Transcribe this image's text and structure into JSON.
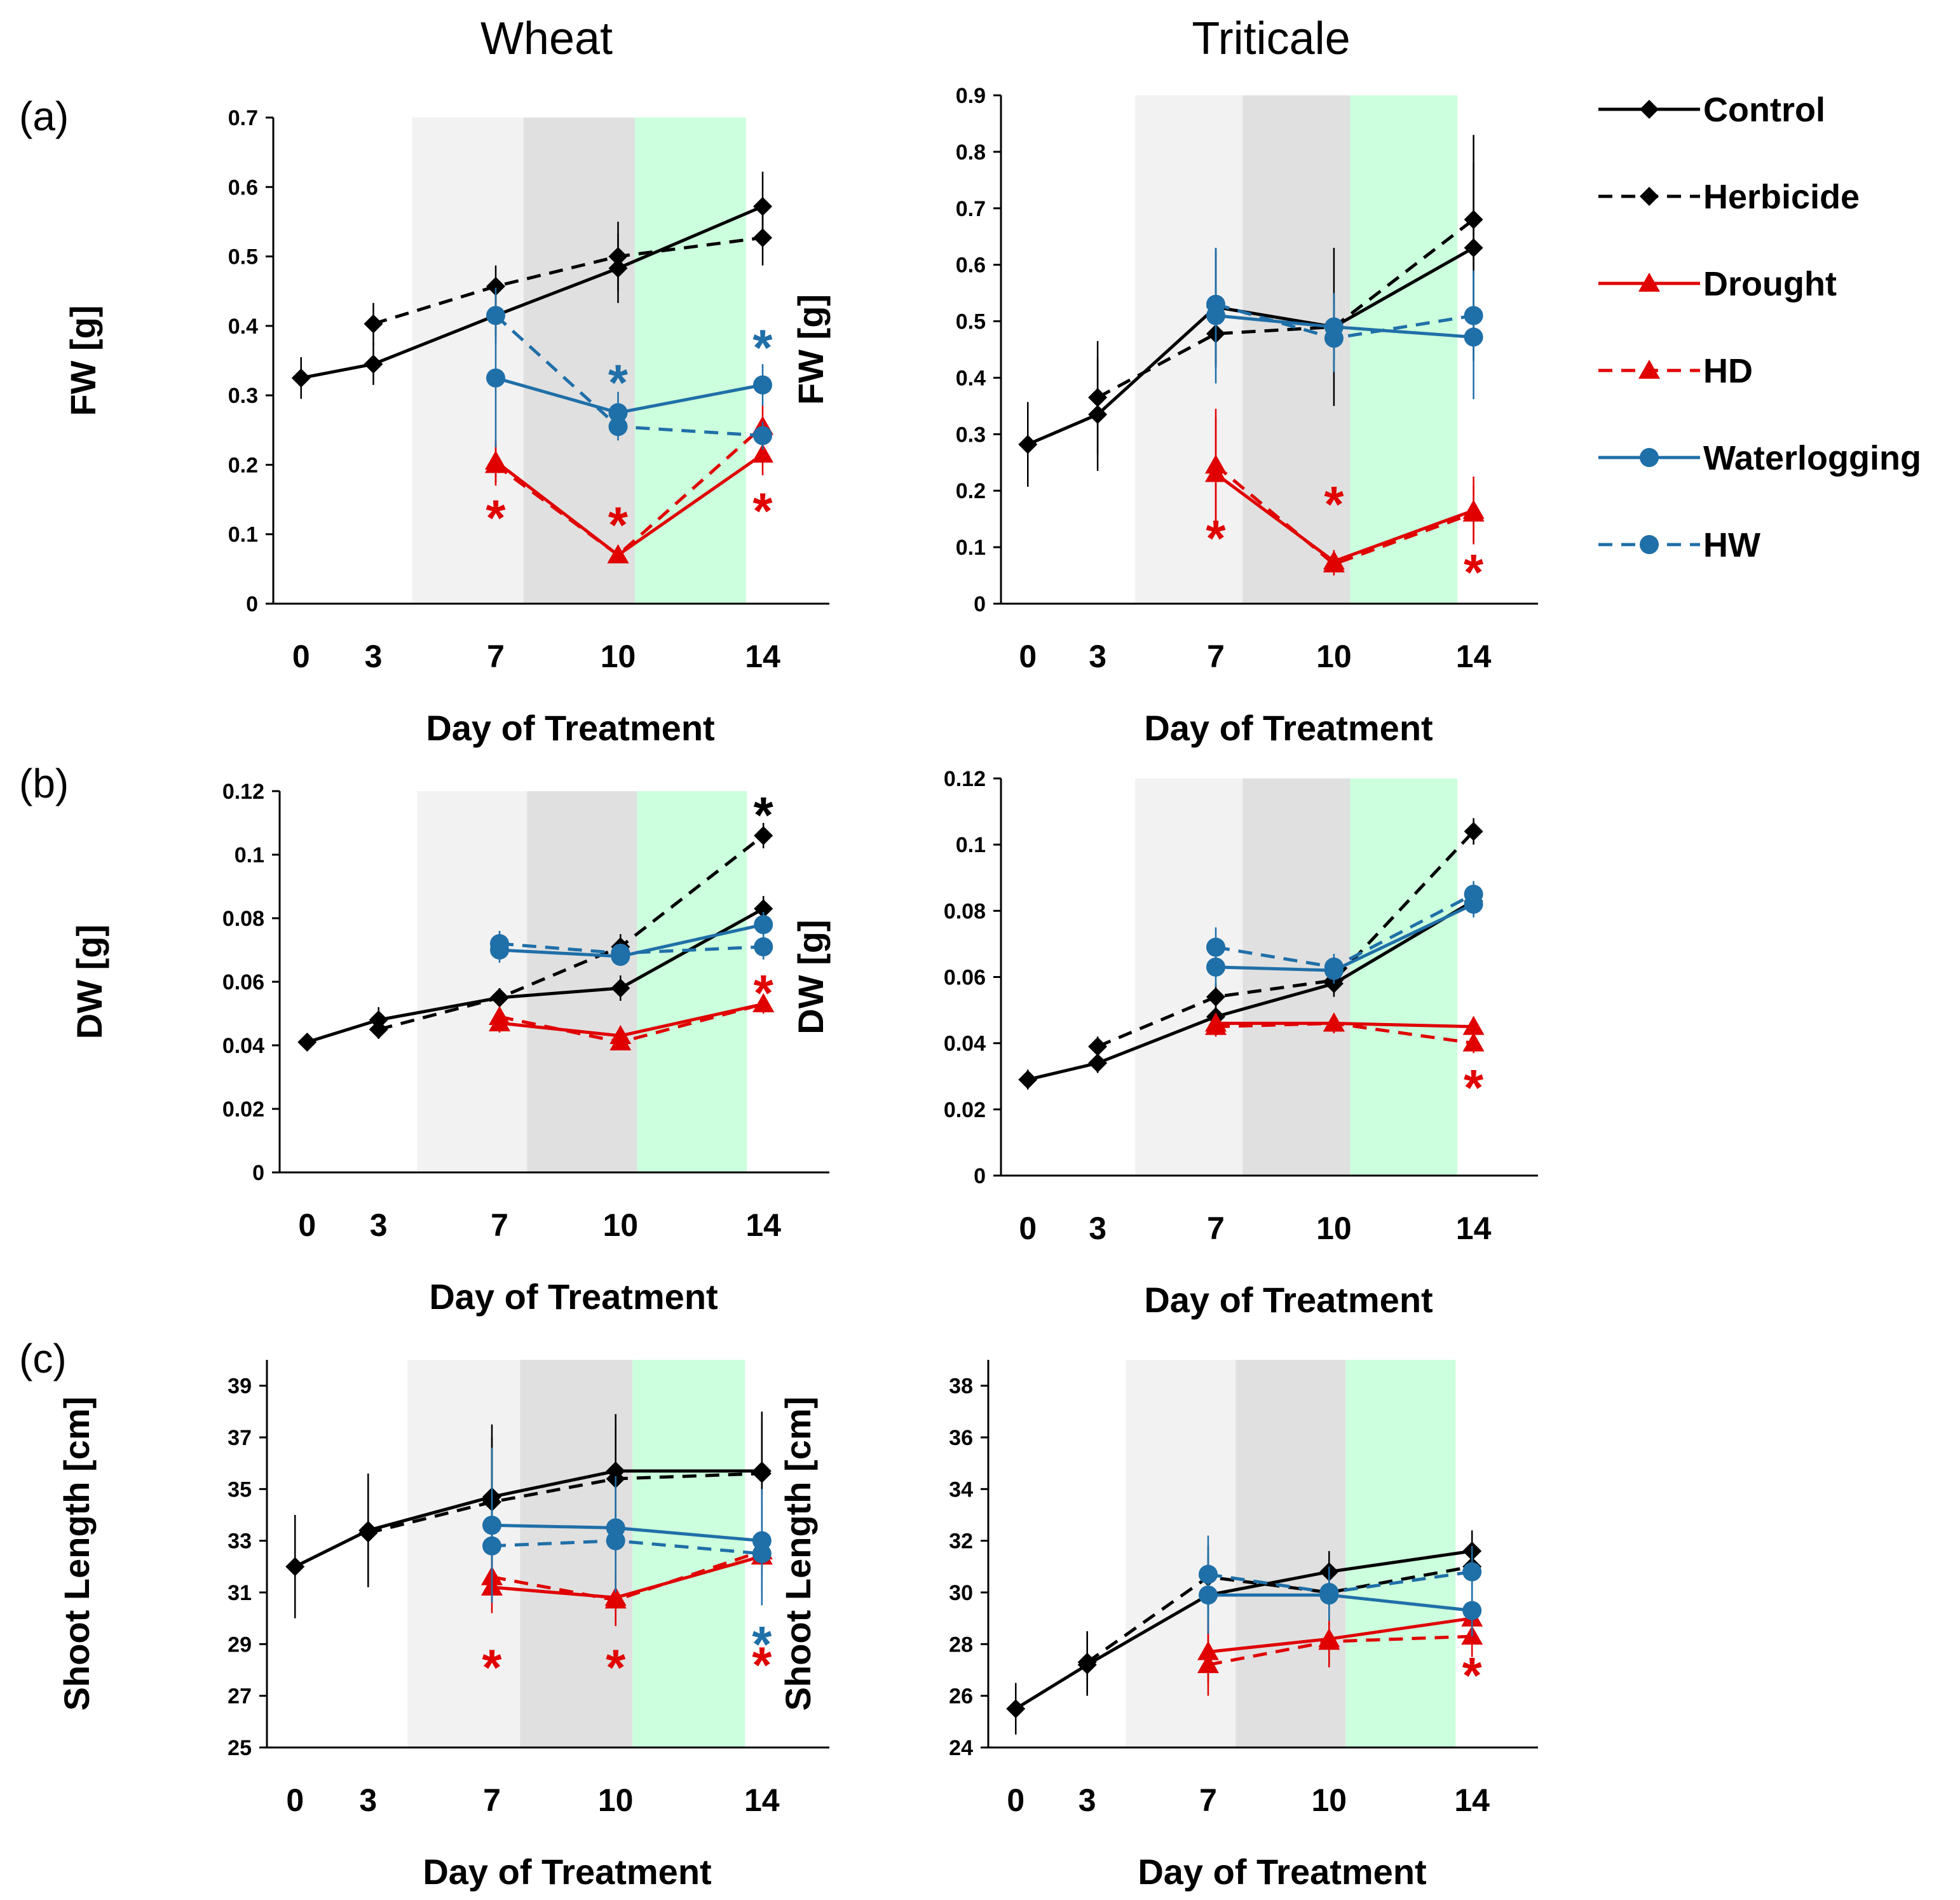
{
  "figure": {
    "column_titles": [
      "Wheat",
      "Triticale"
    ],
    "panel_labels": [
      "(a)",
      "(b)",
      "(c)"
    ],
    "colors": {
      "control": "#000000",
      "herbicide": "#000000",
      "drought": "#e00000",
      "hd": "#e00000",
      "waterlogging": "#1f6fa8",
      "hw": "#1f6fa8",
      "band_light": "#f2f2f2",
      "band_dark": "#e0e0e0",
      "band_green": "#ccffdd"
    }
  },
  "legend": {
    "items": [
      {
        "label": "Control",
        "color": "#000000",
        "dash": false,
        "marker": "diamond"
      },
      {
        "label": "Herbicide",
        "color": "#000000",
        "dash": true,
        "marker": "diamond"
      },
      {
        "label": "Drought",
        "color": "#e00000",
        "dash": false,
        "marker": "triangle"
      },
      {
        "label": "HD",
        "color": "#e00000",
        "dash": true,
        "marker": "triangle"
      },
      {
        "label": "Waterlogging",
        "color": "#1f6fa8",
        "dash": false,
        "marker": "circle"
      },
      {
        "label": "HW",
        "color": "#1f6fa8",
        "dash": true,
        "marker": "circle"
      }
    ]
  },
  "chart_data": [
    {
      "id": "a-wheat",
      "type": "line",
      "panel": "(a)",
      "crop": "Wheat",
      "ylabel": "FW [g]",
      "xlabel": "Day of Treatment",
      "x": [
        0,
        3,
        7,
        10,
        14
      ],
      "x_tick_labels": [
        "0",
        "3",
        "7",
        "10",
        "14"
      ],
      "ylim": [
        0,
        0.7
      ],
      "ystep": 0.1,
      "yticks": [
        "0",
        "0.1",
        "0.2",
        "0.3",
        "0.4",
        "0.5",
        "0.6",
        "0.7"
      ],
      "bands": [
        [
          3,
          7
        ],
        [
          7,
          10
        ],
        [
          10,
          14
        ]
      ],
      "series": [
        {
          "name": "Control",
          "values": [
            0.325,
            0.345,
            0.415,
            0.483,
            0.572
          ],
          "err": [
            0.03,
            0.03,
            0.03,
            0.05,
            0.05
          ]
        },
        {
          "name": "Herbicide",
          "values": [
            null,
            0.403,
            0.457,
            0.5,
            0.527
          ],
          "err": [
            null,
            0.03,
            0.03,
            0.05,
            0.04
          ]
        },
        {
          "name": "Drought",
          "values": [
            null,
            null,
            0.205,
            0.07,
            0.215
          ],
          "err": [
            null,
            null,
            0.03,
            0.01,
            0.03
          ]
        },
        {
          "name": "HD",
          "values": [
            null,
            null,
            0.2,
            0.07,
            0.255
          ],
          "err": [
            null,
            null,
            0.03,
            0.01,
            0.03
          ]
        },
        {
          "name": "Waterlogging",
          "values": [
            null,
            null,
            0.325,
            0.275,
            0.315
          ],
          "err": [
            null,
            null,
            0.1,
            0.03,
            0.03
          ]
        },
        {
          "name": "HW",
          "values": [
            null,
            null,
            0.415,
            0.255,
            0.242
          ],
          "err": [
            null,
            null,
            0.04,
            0.02,
            0.02
          ]
        }
      ],
      "annotations": [
        {
          "text": "*",
          "x": 7,
          "y": 0.135,
          "series": "Drought"
        },
        {
          "text": "*",
          "x": 10,
          "y": 0.125,
          "series": "Drought"
        },
        {
          "text": "*",
          "x": 14,
          "y": 0.145,
          "series": "Drought"
        },
        {
          "text": "*",
          "x": 10,
          "y": 0.33,
          "series": "Waterlogging"
        },
        {
          "text": "*",
          "x": 14,
          "y": 0.38,
          "series": "Waterlogging"
        }
      ]
    },
    {
      "id": "a-triticale",
      "type": "line",
      "panel": "(a)",
      "crop": "Triticale",
      "ylabel": "FW [g]",
      "xlabel": "Day of Treatment",
      "x": [
        0,
        3,
        7,
        10,
        14
      ],
      "x_tick_labels": [
        "0",
        "3",
        "7",
        "10",
        "14"
      ],
      "ylim": [
        0,
        0.9
      ],
      "ystep": 0.1,
      "yticks": [
        "0",
        "0.1",
        "0.2",
        "0.3",
        "0.4",
        "0.5",
        "0.6",
        "0.7",
        "0.8",
        "0.9"
      ],
      "bands": [
        [
          3,
          7
        ],
        [
          7,
          10
        ],
        [
          10,
          14
        ]
      ],
      "series": [
        {
          "name": "Control",
          "values": [
            0.282,
            0.335,
            0.525,
            0.49,
            0.63
          ],
          "err": [
            0.075,
            0.1,
            0.1,
            0.14,
            0.2
          ]
        },
        {
          "name": "Herbicide",
          "values": [
            null,
            0.365,
            0.478,
            0.49,
            0.68
          ],
          "err": [
            null,
            0.1,
            0.06,
            0.06,
            0.1
          ]
        },
        {
          "name": "Drought",
          "values": [
            null,
            null,
            0.23,
            0.075,
            0.165
          ],
          "err": [
            null,
            null,
            0.1,
            0.02,
            0.06
          ]
        },
        {
          "name": "HD",
          "values": [
            null,
            null,
            0.245,
            0.07,
            0.16
          ],
          "err": [
            null,
            null,
            0.1,
            0.02,
            0.05
          ]
        },
        {
          "name": "Waterlogging",
          "values": [
            null,
            null,
            0.51,
            0.49,
            0.472
          ],
          "err": [
            null,
            null,
            0.12,
            0.06,
            0.11
          ]
        },
        {
          "name": "HW",
          "values": [
            null,
            null,
            0.53,
            0.47,
            0.51
          ],
          "err": [
            null,
            null,
            0.1,
            0.06,
            0.08
          ]
        }
      ],
      "annotations": [
        {
          "text": "*",
          "x": 7,
          "y": 0.13,
          "series": "Drought"
        },
        {
          "text": "*",
          "x": 10,
          "y": 0.19,
          "series": "Drought"
        },
        {
          "text": "*",
          "x": 14,
          "y": 0.07,
          "series": "Drought"
        }
      ]
    },
    {
      "id": "b-wheat",
      "type": "line",
      "panel": "(b)",
      "crop": "Wheat",
      "ylabel": "DW  [g]",
      "xlabel": "Day of Treatment",
      "x": [
        0,
        3,
        7,
        10,
        14
      ],
      "x_tick_labels": [
        "0",
        "3",
        "7",
        "10",
        "14"
      ],
      "ylim": [
        0,
        0.12
      ],
      "ystep": 0.02,
      "yticks": [
        "0",
        "0.02",
        "0.04",
        "0.06",
        "0.08",
        "0.1",
        "0.12"
      ],
      "bands": [
        [
          3,
          7
        ],
        [
          7,
          10
        ],
        [
          10,
          14
        ]
      ],
      "series": [
        {
          "name": "Control",
          "values": [
            0.041,
            0.048,
            0.055,
            0.058,
            0.083
          ],
          "err": [
            0.002,
            0.004,
            0.003,
            0.004,
            0.004
          ]
        },
        {
          "name": "Herbicide",
          "values": [
            null,
            0.045,
            0.055,
            0.071,
            0.106
          ],
          "err": [
            null,
            0.003,
            0.003,
            0.004,
            0.004
          ]
        },
        {
          "name": "Drought",
          "values": [
            null,
            null,
            0.047,
            0.043,
            0.053
          ],
          "err": [
            null,
            null,
            0.003,
            0.002,
            0.003
          ]
        },
        {
          "name": "HD",
          "values": [
            null,
            null,
            0.049,
            0.041,
            0.053
          ],
          "err": [
            null,
            null,
            0.003,
            0.002,
            0.003
          ]
        },
        {
          "name": "Waterlogging",
          "values": [
            null,
            null,
            0.07,
            0.068,
            0.078
          ],
          "err": [
            null,
            null,
            0.004,
            0.003,
            0.004
          ]
        },
        {
          "name": "HW",
          "values": [
            null,
            null,
            0.072,
            0.069,
            0.071
          ],
          "err": [
            null,
            null,
            0.004,
            0.003,
            0.004
          ]
        }
      ],
      "annotations": [
        {
          "text": "*",
          "x": 14,
          "y": 0.115,
          "series": "Herbicide"
        },
        {
          "text": "*",
          "x": 14,
          "y": 0.059,
          "series": "Drought"
        }
      ]
    },
    {
      "id": "b-triticale",
      "type": "line",
      "panel": "(b)",
      "crop": "Triticale",
      "ylabel": "DW  [g]",
      "xlabel": "Day of Treatment",
      "x": [
        0,
        3,
        7,
        10,
        14
      ],
      "x_tick_labels": [
        "0",
        "3",
        "7",
        "10",
        "14"
      ],
      "ylim": [
        0,
        0.12
      ],
      "ystep": 0.02,
      "yticks": [
        "0",
        "0.02",
        "0.04",
        "0.06",
        "0.08",
        "0.1",
        "0.12"
      ],
      "bands": [
        [
          3,
          7
        ],
        [
          7,
          10
        ],
        [
          10,
          14
        ]
      ],
      "series": [
        {
          "name": "Control",
          "values": [
            0.029,
            0.034,
            0.048,
            0.058,
            0.083
          ],
          "err": [
            0.003,
            0.003,
            0.004,
            0.004,
            0.004
          ]
        },
        {
          "name": "Herbicide",
          "values": [
            null,
            0.039,
            0.054,
            0.059,
            0.104
          ],
          "err": [
            null,
            0.003,
            0.004,
            0.004,
            0.004
          ]
        },
        {
          "name": "Drought",
          "values": [
            null,
            null,
            0.046,
            0.046,
            0.045
          ],
          "err": [
            null,
            null,
            0.003,
            0.003,
            0.003
          ]
        },
        {
          "name": "HD",
          "values": [
            null,
            null,
            0.045,
            0.046,
            0.04
          ],
          "err": [
            null,
            null,
            0.003,
            0.003,
            0.003
          ]
        },
        {
          "name": "Waterlogging",
          "values": [
            null,
            null,
            0.063,
            0.062,
            0.082
          ],
          "err": [
            null,
            null,
            0.006,
            0.004,
            0.004
          ]
        },
        {
          "name": "HW",
          "values": [
            null,
            null,
            0.069,
            0.063,
            0.085
          ],
          "err": [
            null,
            null,
            0.006,
            0.004,
            0.004
          ]
        }
      ],
      "annotations": [
        {
          "text": "*",
          "x": 14,
          "y": 0.029,
          "series": "HD"
        }
      ]
    },
    {
      "id": "c-wheat",
      "type": "line",
      "panel": "(c)",
      "crop": "Wheat",
      "ylabel": "Shoot Length  [cm]",
      "xlabel": "Day of Treatment",
      "x": [
        0,
        3,
        7,
        10,
        14
      ],
      "x_tick_labels": [
        "0",
        "3",
        "7",
        "10",
        "14"
      ],
      "ylim": [
        25,
        40
      ],
      "ystep": 2,
      "yticks": [
        "25",
        "27",
        "29",
        "31",
        "33",
        "35",
        "37",
        "39"
      ],
      "bands": [
        [
          3,
          7
        ],
        [
          7,
          10
        ],
        [
          10,
          14
        ]
      ],
      "series": [
        {
          "name": "Control",
          "values": [
            32.0,
            33.4,
            34.7,
            35.7,
            35.7
          ],
          "err": [
            2.0,
            2.2,
            2.8,
            2.2,
            2.3
          ]
        },
        {
          "name": "Herbicide",
          "values": [
            null,
            33.3,
            34.5,
            35.4,
            35.6
          ],
          "err": [
            null,
            2.0,
            2.5,
            2.0,
            2.0
          ]
        },
        {
          "name": "Drought",
          "values": [
            null,
            null,
            31.2,
            30.8,
            32.4
          ],
          "err": [
            null,
            null,
            1.0,
            1.0,
            1.0
          ]
        },
        {
          "name": "HD",
          "values": [
            null,
            null,
            31.6,
            30.7,
            32.6
          ],
          "err": [
            null,
            null,
            1.0,
            1.0,
            1.0
          ]
        },
        {
          "name": "Waterlogging",
          "values": [
            null,
            null,
            33.6,
            33.5,
            33.0
          ],
          "err": [
            null,
            null,
            3.0,
            2.0,
            2.0
          ]
        },
        {
          "name": "HW",
          "values": [
            null,
            null,
            32.8,
            33.0,
            32.5
          ],
          "err": [
            null,
            null,
            2.0,
            2.0,
            2.0
          ]
        }
      ],
      "annotations": [
        {
          "text": "*",
          "x": 7,
          "y": 28.4,
          "series": "Drought"
        },
        {
          "text": "*",
          "x": 10,
          "y": 28.4,
          "series": "Drought"
        },
        {
          "text": "*",
          "x": 14,
          "y": 28.5,
          "series": "Drought"
        },
        {
          "text": "*",
          "x": 14,
          "y": 29.3,
          "series": "Waterlogging"
        }
      ]
    },
    {
      "id": "c-triticale",
      "type": "line",
      "panel": "(c)",
      "crop": "Triticale",
      "ylabel": "Shoot Length  [cm]",
      "xlabel": "Day of Treatment",
      "x": [
        0,
        3,
        7,
        10,
        14
      ],
      "x_tick_labels": [
        "0",
        "3",
        "7",
        "10",
        "14"
      ],
      "ylim": [
        24,
        39
      ],
      "ystep": 2,
      "yticks": [
        "24",
        "26",
        "28",
        "30",
        "32",
        "34",
        "36",
        "38"
      ],
      "bands": [
        [
          3,
          7
        ],
        [
          7,
          10
        ],
        [
          10,
          14
        ]
      ],
      "series": [
        {
          "name": "Control",
          "values": [
            25.5,
            27.2,
            29.9,
            30.8,
            31.6
          ],
          "err": [
            1.0,
            1.2,
            1.5,
            0.8,
            0.8
          ]
        },
        {
          "name": "Herbicide",
          "values": [
            null,
            27.3,
            30.6,
            30.0,
            31.0
          ],
          "err": [
            null,
            1.2,
            1.2,
            0.8,
            0.8
          ]
        },
        {
          "name": "Drought",
          "values": [
            null,
            null,
            27.7,
            28.2,
            29.0
          ],
          "err": [
            null,
            null,
            1.2,
            1.0,
            0.8
          ]
        },
        {
          "name": "HD",
          "values": [
            null,
            null,
            27.2,
            28.1,
            28.3
          ],
          "err": [
            null,
            null,
            1.2,
            1.0,
            0.8
          ]
        },
        {
          "name": "Waterlogging",
          "values": [
            null,
            null,
            29.9,
            29.9,
            29.3
          ],
          "err": [
            null,
            null,
            1.5,
            1.0,
            1.0
          ]
        },
        {
          "name": "HW",
          "values": [
            null,
            null,
            30.7,
            30.0,
            30.8
          ],
          "err": [
            null,
            null,
            1.5,
            1.0,
            1.0
          ]
        }
      ],
      "annotations": [
        {
          "text": "*",
          "x": 14,
          "y": 27.1,
          "series": "HD"
        }
      ]
    }
  ]
}
